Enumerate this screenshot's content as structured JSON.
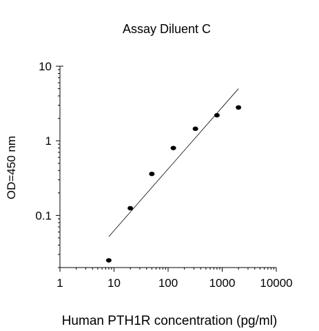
{
  "chart_data": {
    "type": "scatter",
    "title": "Assay Diluent C",
    "xlabel": "Human PTH1R concentration (pg/ml)",
    "ylabel": "OD=450 nm",
    "xscale": "log",
    "yscale": "log",
    "xlim": [
      1,
      10000
    ],
    "ylim": [
      0.02,
      10
    ],
    "xticks": [
      1,
      10,
      100,
      1000,
      10000
    ],
    "xtick_labels": [
      "1",
      "10",
      "100",
      "1000",
      "10000"
    ],
    "yticks": [
      0.1,
      1,
      10
    ],
    "ytick_labels": [
      "0.1",
      "1",
      "10"
    ],
    "grid": false,
    "legend": "none",
    "points": [
      {
        "x": 8,
        "y": 0.025
      },
      {
        "x": 20,
        "y": 0.125
      },
      {
        "x": 50,
        "y": 0.36
      },
      {
        "x": 125,
        "y": 0.8
      },
      {
        "x": 320,
        "y": 1.45
      },
      {
        "x": 800,
        "y": 2.2
      },
      {
        "x": 2000,
        "y": 2.8
      }
    ],
    "fit_line": {
      "x": [
        8,
        2000
      ],
      "y": [
        0.052,
        5.0
      ]
    },
    "colors": {
      "points": "#000000",
      "line": "#000000",
      "axes": "#000000"
    }
  }
}
